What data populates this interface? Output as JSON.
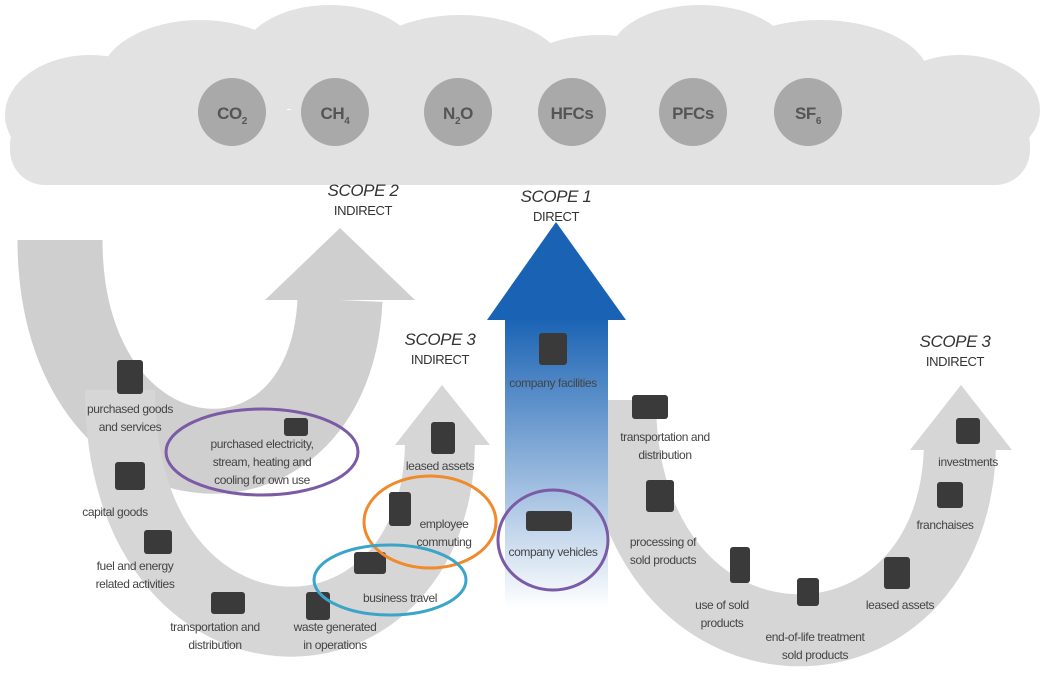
{
  "gases": [
    {
      "text": "CO",
      "sub": "2"
    },
    {
      "text": "CH",
      "sub": "4"
    },
    {
      "text": "N",
      "sub": "2",
      "tail": "O"
    },
    {
      "text": "HFCs"
    },
    {
      "text": "PFCs"
    },
    {
      "text": "SF",
      "sub": "6"
    }
  ],
  "scopes": [
    {
      "title": "SCOPE 2",
      "subtitle": "INDIRECT"
    },
    {
      "title": "SCOPE 1",
      "subtitle": "DIRECT"
    },
    {
      "title": "SCOPE 3",
      "subtitle": "INDIRECT"
    },
    {
      "title": "SCOPE 3",
      "subtitle": "INDIRECT"
    }
  ],
  "items": [
    {
      "label": [
        "purchased goods",
        "and services"
      ]
    },
    {
      "label": [
        "purchased electricity,",
        "stream, heating and",
        "cooling for own use"
      ]
    },
    {
      "label": [
        "capital goods"
      ]
    },
    {
      "label": [
        "fuel and energy",
        "related activities"
      ]
    },
    {
      "label": [
        "transportation and",
        "distribution"
      ]
    },
    {
      "label": [
        "waste generated",
        "in operations"
      ]
    },
    {
      "label": [
        "business travel"
      ]
    },
    {
      "label": [
        "employee",
        "commuting"
      ]
    },
    {
      "label": [
        "leased assets"
      ]
    },
    {
      "label": [
        "company facilities"
      ]
    },
    {
      "label": [
        "company vehicles"
      ]
    },
    {
      "label": [
        "transportation and",
        "distribution"
      ]
    },
    {
      "label": [
        "processing of",
        "sold products"
      ]
    },
    {
      "label": [
        "use of sold",
        "products"
      ]
    },
    {
      "label": [
        "end-of-life treatment",
        "sold products"
      ]
    },
    {
      "label": [
        "leased assets"
      ]
    },
    {
      "label": [
        "franchaises"
      ]
    },
    {
      "label": [
        "investments"
      ]
    }
  ]
}
